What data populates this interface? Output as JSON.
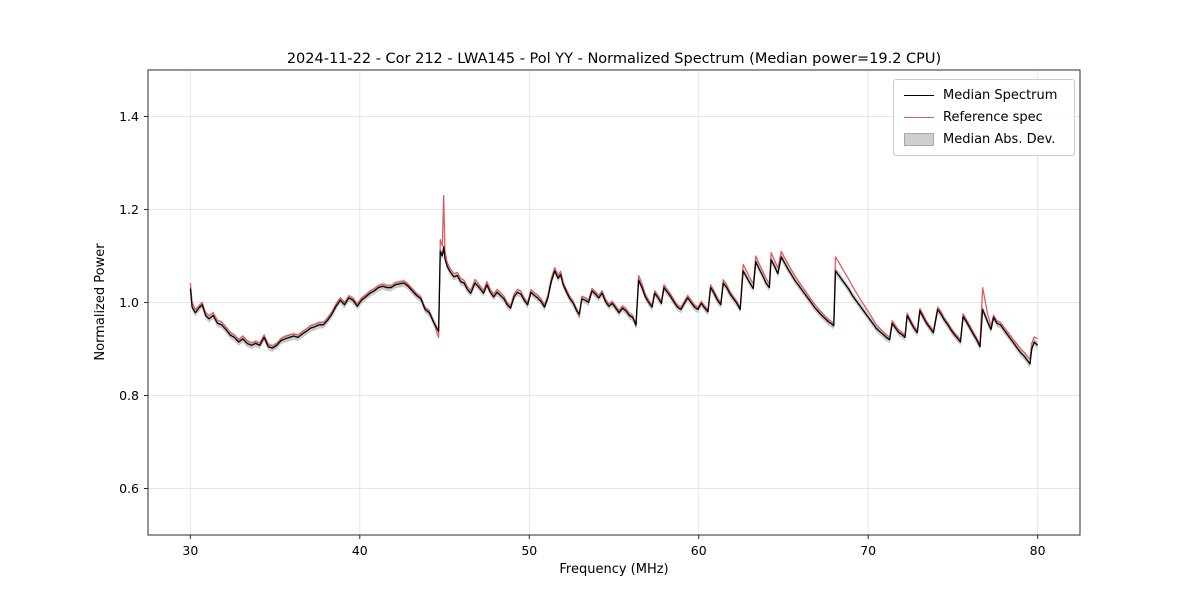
{
  "chart_data": {
    "type": "line",
    "title": "2024-11-22 - Cor 212 - LWA145 - Pol YY - Normalized Spectrum (Median power=19.2 CPU)",
    "xlabel": "Frequency (MHz)",
    "ylabel": "Normalized Power",
    "xlim": [
      27.5,
      82.5
    ],
    "ylim": [
      0.5,
      1.5
    ],
    "xticks": [
      30,
      40,
      50,
      60,
      70,
      80
    ],
    "xtick_labels": [
      "30",
      "40",
      "50",
      "60",
      "70",
      "80"
    ],
    "yticks": [
      0.6,
      0.8,
      1.0,
      1.2,
      1.4
    ],
    "ytick_labels": [
      "0.6",
      "0.8",
      "1.0",
      "1.2",
      "1.4"
    ],
    "grid": true,
    "legend": [
      {
        "label": "Median Spectrum",
        "color": "#000000",
        "swatch": "line"
      },
      {
        "label": "Reference spec",
        "color": "#e25b5b",
        "swatch": "line"
      },
      {
        "label": "Median Abs. Dev.",
        "color": "#cfcfcf",
        "swatch": "patch"
      }
    ],
    "legend_position": "upper right",
    "x": [
      30.0,
      30.1,
      30.3,
      30.5,
      30.7,
      30.9,
      31.1,
      31.35,
      31.6,
      31.85,
      32.1,
      32.35,
      32.6,
      32.85,
      33.1,
      33.35,
      33.6,
      33.85,
      34.1,
      34.35,
      34.6,
      34.85,
      35.1,
      35.35,
      35.6,
      35.85,
      36.1,
      36.35,
      36.6,
      36.85,
      37.1,
      37.35,
      37.6,
      37.85,
      38.1,
      38.35,
      38.6,
      38.85,
      39.1,
      39.35,
      39.6,
      39.85,
      40.1,
      40.35,
      40.6,
      40.85,
      41.1,
      41.35,
      41.6,
      41.85,
      42.1,
      42.35,
      42.6,
      42.85,
      43.1,
      43.35,
      43.6,
      43.85,
      44.1,
      44.35,
      44.55,
      44.65,
      44.75,
      44.87,
      44.95,
      45.02,
      45.15,
      45.35,
      45.55,
      45.75,
      45.95,
      46.15,
      46.35,
      46.55,
      46.8,
      47.05,
      47.3,
      47.5,
      47.7,
      47.9,
      48.1,
      48.3,
      48.5,
      48.7,
      48.9,
      49.1,
      49.3,
      49.5,
      49.7,
      49.9,
      50.1,
      50.3,
      50.5,
      50.7,
      50.9,
      51.1,
      51.3,
      51.5,
      51.7,
      51.85,
      52.0,
      52.2,
      52.4,
      52.6,
      52.8,
      52.95,
      53.1,
      53.3,
      53.5,
      53.7,
      53.9,
      54.1,
      54.3,
      54.5,
      54.7,
      54.9,
      55.1,
      55.3,
      55.5,
      55.7,
      55.9,
      56.1,
      56.3,
      56.45,
      56.65,
      56.85,
      57.05,
      57.25,
      57.4,
      57.6,
      57.8,
      57.95,
      58.15,
      58.35,
      58.55,
      58.75,
      58.95,
      59.15,
      59.35,
      59.55,
      59.75,
      59.95,
      60.15,
      60.35,
      60.55,
      60.7,
      60.9,
      61.1,
      61.3,
      61.45,
      61.65,
      61.85,
      62.05,
      62.25,
      62.45,
      62.62,
      62.82,
      63.02,
      63.22,
      63.37,
      63.57,
      63.77,
      63.97,
      64.17,
      64.27,
      64.47,
      64.67,
      64.87,
      65.07,
      65.27,
      65.47,
      65.67,
      65.87,
      66.07,
      66.27,
      66.47,
      66.67,
      66.87,
      67.07,
      67.27,
      67.47,
      67.67,
      67.87,
      67.97,
      68.07,
      68.27,
      68.47,
      68.67,
      68.87,
      69.07,
      69.27,
      69.47,
      69.67,
      69.87,
      70.07,
      70.27,
      70.47,
      70.67,
      70.87,
      71.07,
      71.27,
      71.42,
      71.62,
      71.82,
      72.02,
      72.17,
      72.3,
      72.5,
      72.7,
      72.9,
      73.05,
      73.25,
      73.45,
      73.65,
      73.85,
      74.1,
      74.3,
      74.5,
      74.7,
      74.9,
      75.1,
      75.3,
      75.45,
      75.6,
      75.8,
      76.0,
      76.2,
      76.4,
      76.6,
      76.75,
      76.9,
      77.05,
      77.25,
      77.4,
      77.6,
      77.8,
      78.0,
      78.2,
      78.4,
      78.6,
      78.8,
      79.0,
      79.2,
      79.4,
      79.55,
      79.65,
      79.8,
      80.0
    ],
    "series": [
      {
        "name": "Median Spectrum",
        "color": "#000000",
        "y": [
          1.03,
          0.99,
          0.978,
          0.988,
          0.995,
          0.972,
          0.965,
          0.972,
          0.955,
          0.952,
          0.942,
          0.93,
          0.925,
          0.915,
          0.922,
          0.912,
          0.908,
          0.912,
          0.908,
          0.925,
          0.905,
          0.902,
          0.908,
          0.918,
          0.922,
          0.925,
          0.928,
          0.925,
          0.932,
          0.938,
          0.945,
          0.948,
          0.952,
          0.952,
          0.962,
          0.975,
          0.992,
          1.005,
          0.995,
          1.01,
          1.005,
          0.992,
          1.005,
          1.012,
          1.02,
          1.025,
          1.032,
          1.035,
          1.032,
          1.032,
          1.038,
          1.04,
          1.042,
          1.035,
          1.025,
          1.015,
          1.008,
          0.985,
          0.978,
          0.958,
          0.945,
          0.938,
          1.11,
          1.1,
          1.12,
          1.095,
          1.078,
          1.065,
          1.055,
          1.058,
          1.045,
          1.042,
          1.028,
          1.02,
          1.042,
          1.032,
          1.02,
          1.038,
          1.022,
          1.012,
          1.022,
          1.015,
          1.008,
          0.995,
          0.988,
          1.012,
          1.022,
          1.018,
          1.005,
          0.995,
          1.022,
          1.015,
          1.01,
          1.002,
          0.99,
          1.01,
          1.045,
          1.068,
          1.052,
          1.06,
          1.038,
          1.022,
          1.008,
          0.998,
          0.982,
          0.975,
          1.008,
          1.005,
          1.0,
          1.025,
          1.018,
          1.01,
          1.02,
          1.002,
          0.992,
          0.998,
          0.988,
          0.978,
          0.988,
          0.982,
          0.972,
          0.968,
          0.952,
          1.048,
          1.032,
          1.012,
          1.0,
          0.99,
          1.02,
          1.01,
          0.998,
          1.032,
          1.022,
          1.012,
          1.0,
          0.99,
          0.985,
          0.998,
          1.01,
          1.0,
          0.99,
          0.985,
          0.998,
          0.988,
          0.98,
          1.032,
          1.02,
          1.005,
          0.995,
          1.042,
          1.032,
          1.018,
          1.008,
          0.998,
          0.985,
          1.068,
          1.055,
          1.042,
          1.03,
          1.088,
          1.072,
          1.058,
          1.042,
          1.032,
          1.092,
          1.078,
          1.062,
          1.098,
          1.085,
          1.072,
          1.06,
          1.048,
          1.038,
          1.028,
          1.018,
          1.008,
          0.998,
          0.988,
          0.98,
          0.972,
          0.965,
          0.958,
          0.953,
          0.95,
          1.068,
          1.058,
          1.048,
          1.038,
          1.028,
          1.015,
          1.005,
          0.995,
          0.985,
          0.975,
          0.965,
          0.955,
          0.945,
          0.938,
          0.932,
          0.925,
          0.92,
          0.955,
          0.945,
          0.935,
          0.93,
          0.925,
          0.972,
          0.958,
          0.945,
          0.935,
          0.982,
          0.968,
          0.955,
          0.945,
          0.935,
          0.985,
          0.975,
          0.962,
          0.952,
          0.94,
          0.93,
          0.922,
          0.915,
          0.97,
          0.958,
          0.945,
          0.932,
          0.92,
          0.905,
          0.985,
          0.972,
          0.958,
          0.942,
          0.968,
          0.955,
          0.952,
          0.942,
          0.932,
          0.922,
          0.912,
          0.902,
          0.892,
          0.885,
          0.875,
          0.868,
          0.9,
          0.915,
          0.908
        ]
      },
      {
        "name": "Reference spec",
        "color": "#e25b5b",
        "y": [
          1.042,
          1.0,
          0.985,
          0.992,
          1.0,
          0.978,
          0.972,
          0.978,
          0.962,
          0.958,
          0.948,
          0.936,
          0.93,
          0.92,
          0.928,
          0.918,
          0.913,
          0.916,
          0.913,
          0.93,
          0.91,
          0.906,
          0.912,
          0.922,
          0.927,
          0.93,
          0.932,
          0.93,
          0.937,
          0.943,
          0.95,
          0.953,
          0.957,
          0.957,
          0.967,
          0.98,
          0.997,
          1.01,
          1.0,
          1.014,
          1.009,
          0.997,
          1.009,
          1.016,
          1.024,
          1.029,
          1.036,
          1.039,
          1.036,
          1.036,
          1.042,
          1.044,
          1.046,
          1.039,
          1.029,
          1.019,
          1.012,
          0.989,
          0.982,
          0.96,
          0.935,
          0.925,
          1.135,
          1.122,
          1.23,
          1.112,
          1.086,
          1.072,
          1.062,
          1.065,
          1.052,
          1.048,
          1.034,
          1.026,
          1.05,
          1.038,
          1.026,
          1.045,
          1.028,
          1.018,
          1.028,
          1.021,
          1.014,
          1.0,
          0.993,
          1.018,
          1.028,
          1.025,
          1.01,
          1.0,
          1.028,
          1.021,
          1.016,
          1.008,
          0.995,
          1.016,
          1.052,
          1.075,
          1.058,
          1.067,
          1.043,
          1.027,
          1.013,
          1.002,
          0.986,
          0.968,
          1.013,
          1.01,
          1.005,
          1.03,
          1.023,
          1.015,
          1.025,
          1.007,
          0.997,
          1.002,
          0.992,
          0.982,
          0.992,
          0.987,
          0.976,
          0.972,
          0.948,
          1.058,
          1.04,
          1.018,
          1.005,
          0.994,
          1.025,
          1.015,
          1.002,
          1.038,
          1.027,
          1.017,
          1.005,
          0.994,
          0.989,
          1.002,
          1.015,
          1.005,
          0.994,
          0.989,
          1.002,
          0.992,
          0.984,
          1.038,
          1.025,
          1.01,
          0.999,
          1.049,
          1.038,
          1.023,
          1.012,
          1.002,
          0.988,
          1.082,
          1.068,
          1.053,
          1.04,
          1.1,
          1.083,
          1.068,
          1.052,
          1.04,
          1.107,
          1.091,
          1.074,
          1.11,
          1.096,
          1.083,
          1.07,
          1.058,
          1.047,
          1.036,
          1.026,
          1.015,
          1.005,
          0.995,
          0.986,
          0.978,
          0.97,
          0.963,
          0.957,
          0.954,
          1.098,
          1.086,
          1.073,
          1.061,
          1.049,
          1.035,
          1.023,
          1.011,
          0.999,
          0.988,
          0.977,
          0.965,
          0.953,
          0.945,
          0.938,
          0.93,
          0.925,
          0.961,
          0.95,
          0.94,
          0.934,
          0.929,
          0.977,
          0.963,
          0.949,
          0.939,
          0.987,
          0.973,
          0.959,
          0.949,
          0.939,
          0.99,
          0.98,
          0.966,
          0.956,
          0.944,
          0.934,
          0.926,
          0.919,
          0.976,
          0.963,
          0.95,
          0.937,
          0.924,
          0.91,
          1.032,
          1.005,
          0.975,
          0.95,
          0.973,
          0.96,
          0.957,
          0.948,
          0.938,
          0.929,
          0.919,
          0.91,
          0.9,
          0.893,
          0.884,
          0.878,
          0.912,
          0.926,
          0.922
        ]
      }
    ],
    "band": {
      "name": "Median Abs. Dev.",
      "color": "#bfbfbf",
      "halfwidth": 0.008
    }
  }
}
